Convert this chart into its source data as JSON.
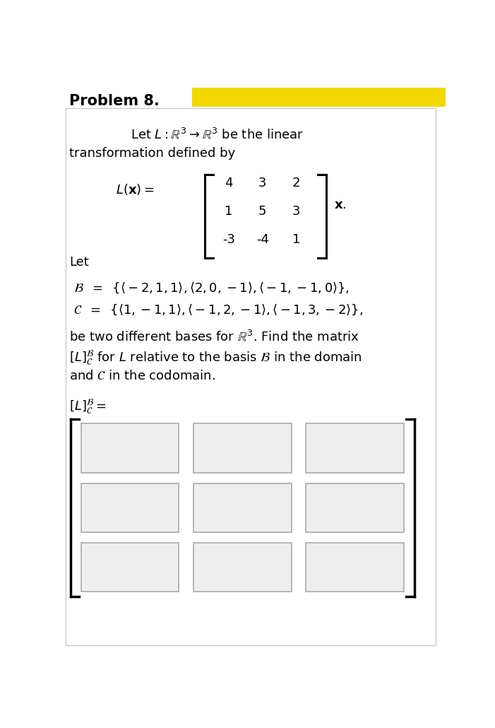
{
  "title": "Problem 8.",
  "bg_color": "#ffffff",
  "header_color": "#f0d800",
  "line1": "Let $L : \\mathbb{R}^3 \\rightarrow \\mathbb{R}^3$ be the linear",
  "line2": "transformation defined by",
  "matrix": [
    [
      4,
      3,
      2
    ],
    [
      1,
      5,
      3
    ],
    [
      -3,
      -4,
      1
    ]
  ],
  "let_text": "Let",
  "B_line": "$\\mathcal{B}\\;\\; = \\;\\; \\{\\langle -2, 1, 1\\rangle , \\langle 2, 0, -1\\rangle , \\langle -1, -1, 0\\rangle\\},$",
  "C_line": "$\\mathcal{C}\\;\\; = \\;\\; \\{\\langle 1, -1, 1\\rangle , \\langle -1, 2, -1\\rangle , \\langle -1, 3, -2\\rangle\\},$",
  "desc1": "be two different bases for $\\mathbb{R}^3$. Find the matrix",
  "desc2": "$[L]^{\\mathcal{B}}_{\\mathcal{C}}$ for $L$ relative to the basis $\\mathcal{B}$ in the domain",
  "desc3": "and $\\mathcal{C}$ in the codomain.",
  "answer_label": "$[L]^{\\mathcal{B}}_{\\mathcal{C}} = $",
  "input_rows": 3,
  "input_cols": 3
}
